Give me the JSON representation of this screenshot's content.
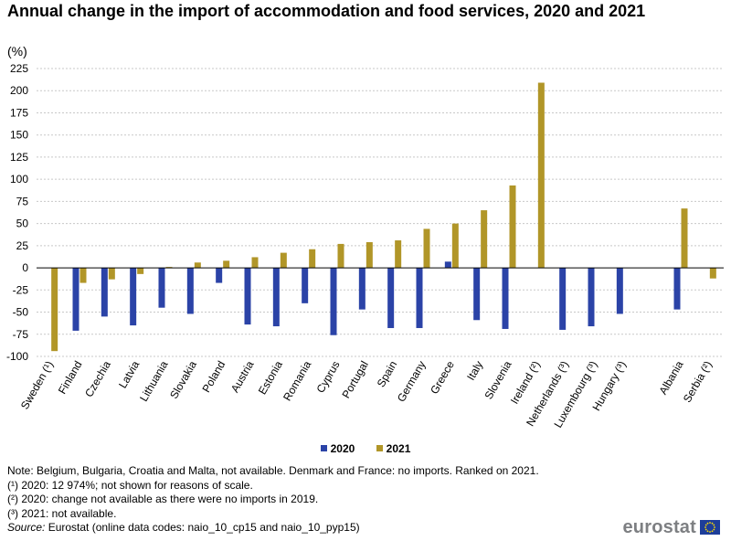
{
  "title": "Annual change in the import of accommodation and food services, 2020 and 2021",
  "unit_label": "(%)",
  "colors": {
    "s2020": "#2b43a7",
    "s2021": "#b19628",
    "grid": "#c8c8c8",
    "axis": "#000000"
  },
  "legend": [
    {
      "name": "2020",
      "color": "#2b43a7"
    },
    {
      "name": "2021",
      "color": "#b19628"
    }
  ],
  "chart_data": {
    "type": "bar",
    "title": "Annual change in the import of accommodation and food services, 2020 and 2021",
    "ylabel": "(%)",
    "ylim": [
      -100,
      225
    ],
    "yticks": [
      -100,
      -75,
      -50,
      -25,
      0,
      25,
      50,
      75,
      100,
      125,
      150,
      175,
      200,
      225
    ],
    "grid": true,
    "categories": [
      "Sweden (¹)",
      "Finland",
      "Czechia",
      "Latvia",
      "Lithuania",
      "Slovakia",
      "Poland",
      "Austria",
      "Estonia",
      "Romania",
      "Cyprus",
      "Portugal",
      "Spain",
      "Germany",
      "Greece",
      "Italy",
      "Slovenia",
      "Ireland (²)",
      "Netherlands (³)",
      "Luxembourg (³)",
      "Hungary (³)",
      "",
      "Albania",
      "Serbia (²)"
    ],
    "series": [
      {
        "name": "2020",
        "values": [
          null,
          -71,
          -55,
          -65,
          -45,
          -52,
          -17,
          -64,
          -66,
          -40,
          -76,
          -47,
          -68,
          -68,
          7,
          -59,
          -69,
          null,
          -70,
          -66,
          -52,
          null,
          -47,
          null
        ]
      },
      {
        "name": "2021",
        "values": [
          -94,
          -17,
          -13,
          -7,
          1,
          6,
          8,
          12,
          17,
          21,
          27,
          29,
          31,
          44,
          50,
          65,
          93,
          209,
          null,
          null,
          null,
          null,
          67,
          -12
        ]
      }
    ]
  },
  "notes": [
    "Note: Belgium, Bulgaria, Croatia and Malta, not available. Denmark and France: no imports. Ranked on 2021.",
    "(¹) 2020: 12 974%; not shown for reasons of scale.",
    "(²) 2020: change not available as there were no imports in 2019.",
    "(³) 2021: not available."
  ],
  "source": {
    "label": "Source:",
    "text": " Eurostat (online data codes: naio_10_cp15 and naio_10_pyp15)"
  },
  "logo": {
    "text": "eurostat"
  }
}
